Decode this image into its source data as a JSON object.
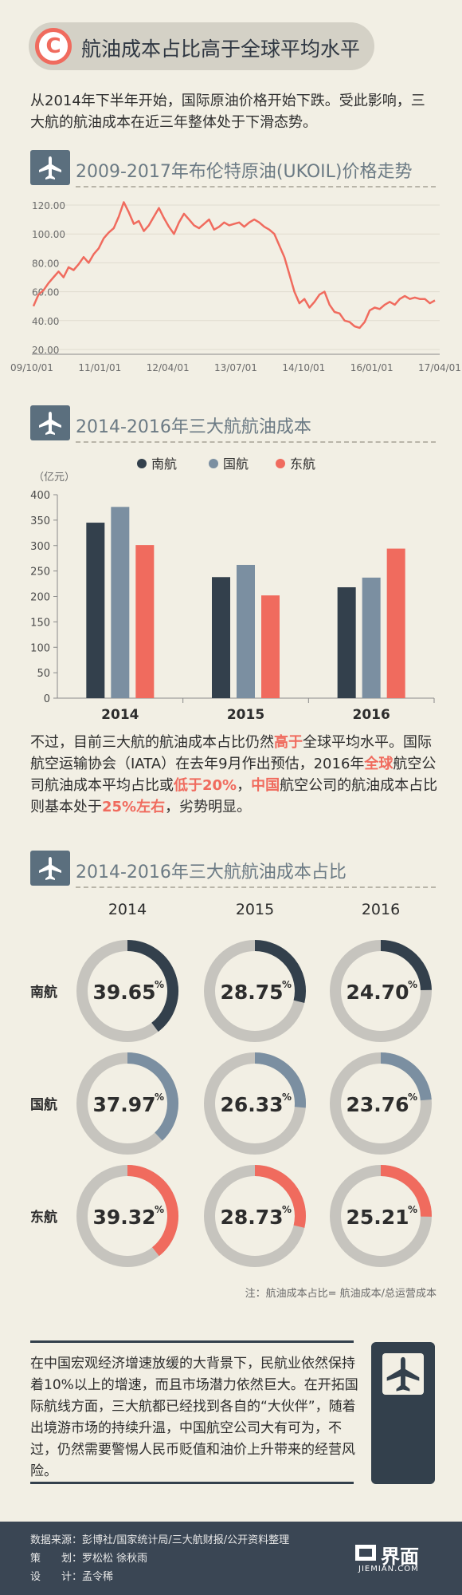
{
  "header": {
    "badge": "C",
    "title": "航油成本占比高于全球平均水平"
  },
  "intro": "从2014年下半年开始，国际原油价格开始下跌。受此影响，三大航的航油成本在近三年整体处于下滑态势。",
  "sections": {
    "oil": {
      "icon": "airplane-icon",
      "title": "2009-2017年布伦特原油(UKOIL)价格走势"
    },
    "cost": {
      "icon": "airplane-icon",
      "title": "2014-2016年三大航航油成本"
    },
    "share": {
      "icon": "airplane-icon",
      "title": "2014-2016年三大航航油成本占比"
    }
  },
  "paragraph": {
    "p1": "不过，目前三大航的航油成本占比仍然",
    "h1": "高于",
    "p2": "全球平均水平。国际航空运输协会（IATA）在去年9月作出预估，2016年",
    "h2": "全球",
    "p3": "航空公司航油成本平均占比或",
    "h3": "低于20%",
    "p4": "，",
    "h4": "中国",
    "p5": "航空公司的航油成本占比则基本处于",
    "h5": "25%左右",
    "p6": "，劣势明显。"
  },
  "note": "注：航油成本占比= 航油成本/总运营成本",
  "closing": "在中国宏观经济增速放缓的大背景下，民航业依然保持着10%以上的增速，而且市场潜力依然巨大。在开拓国际航线方面，三大航都已经找到各自的“大伙伴”，随着出境游市场的持续升温，中国航空公司大有可为，不过，仍然需要警惕人民币贬值和油价上升带来的经营风险。",
  "footer": {
    "source": "数据来源：彭博社/国家统计局/三大航财报/公开资料整理",
    "planner": "策　　划：罗松松 徐秋雨",
    "designer": "设　　计：孟令稀",
    "logo": "界面",
    "logo_sub": "JIEMIAN.COM"
  },
  "colors": {
    "csa": "#33404c",
    "airchina": "#7b8fa1",
    "ces": "#f06b5e",
    "ring_bg": "#c6c4be",
    "line": "#f06b5e"
  },
  "chart_data": [
    {
      "type": "line",
      "title": "2009-2017年布伦特原油(UKOIL)价格走势",
      "x_ticks": [
        "09/10/01",
        "11/01/01",
        "12/04/01",
        "13/07/01",
        "14/10/01",
        "16/01/01",
        "17/04/01"
      ],
      "y_ticks": [
        "120.00",
        "100.00",
        "80.00",
        "60.00",
        "40.00",
        "20.00"
      ],
      "ylim": [
        20,
        125
      ],
      "series": [
        {
          "values": [
            50,
            58,
            61,
            66,
            70,
            74,
            70,
            77,
            75,
            79,
            84,
            80,
            86,
            90,
            97,
            101,
            104,
            112,
            122,
            115,
            107,
            109,
            102,
            106,
            112,
            118,
            111,
            105,
            100,
            108,
            114,
            110,
            106,
            104,
            107,
            110,
            103,
            105,
            108,
            106,
            107,
            108,
            105,
            108,
            110,
            108,
            105,
            103,
            100,
            92,
            84,
            72,
            60,
            52,
            55,
            49,
            53,
            58,
            60,
            51,
            46,
            45,
            40,
            39,
            36,
            35,
            39,
            47,
            49,
            48,
            51,
            53,
            51,
            55,
            57,
            55,
            56,
            55,
            55,
            52,
            54
          ]
        }
      ]
    },
    {
      "type": "bar",
      "title": "2014-2016年三大航航油成本",
      "ylabel": "（亿元）",
      "ylim": [
        0,
        400
      ],
      "y_ticks": [
        "400",
        "350",
        "300",
        "250",
        "200",
        "150",
        "100",
        "50",
        "0"
      ],
      "categories": [
        "2014",
        "2015",
        "2016"
      ],
      "series": [
        {
          "name": "南航",
          "values": [
            345,
            238,
            218
          ]
        },
        {
          "name": "国航",
          "values": [
            376,
            262,
            237
          ]
        },
        {
          "name": "东航",
          "values": [
            301,
            202,
            294
          ]
        }
      ]
    },
    {
      "type": "pie",
      "title": "2014-2016年三大航航油成本占比",
      "years": [
        "2014",
        "2015",
        "2016"
      ],
      "unit": "%",
      "rows": [
        {
          "name": "南航",
          "values": [
            39.65,
            28.75,
            24.7
          ],
          "labels": [
            "39.65",
            "28.75",
            "24.70"
          ]
        },
        {
          "name": "国航",
          "values": [
            37.97,
            26.33,
            23.76
          ],
          "labels": [
            "37.97",
            "26.33",
            "23.76"
          ]
        },
        {
          "name": "东航",
          "values": [
            39.32,
            28.73,
            25.21
          ],
          "labels": [
            "39.32",
            "28.73",
            "25.21"
          ]
        }
      ]
    }
  ]
}
